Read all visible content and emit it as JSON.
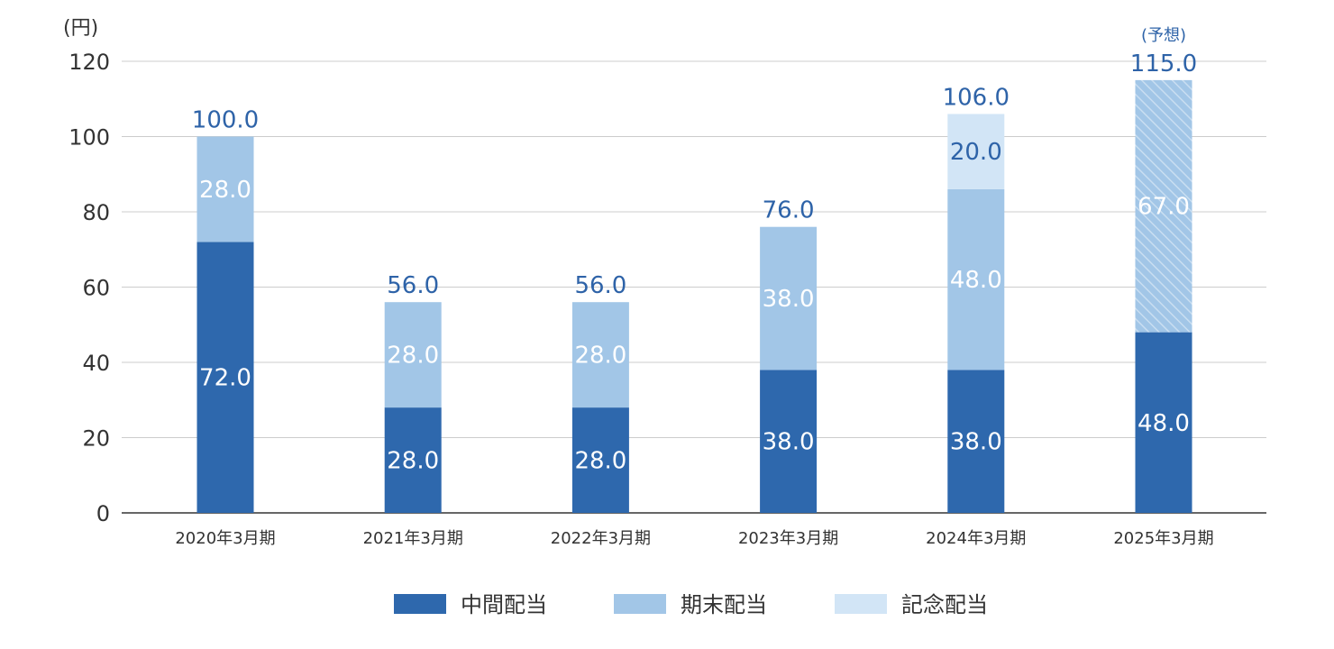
{
  "chart_data": {
    "type": "bar",
    "stacked": true,
    "unit_label": "(円)",
    "categories": [
      "2020年3月期",
      "2021年3月期",
      "2022年3月期",
      "2023年3月期",
      "2024年3月期",
      "2025年3月期"
    ],
    "series": [
      {
        "name": "中間配当",
        "values": [
          72.0,
          28.0,
          28.0,
          38.0,
          38.0,
          48.0
        ],
        "color": "#2e68ad",
        "labels": [
          "72.0",
          "28.0",
          "28.0",
          "38.0",
          "38.0",
          "48.0"
        ]
      },
      {
        "name": "期末配当",
        "values": [
          28.0,
          28.0,
          28.0,
          38.0,
          48.0,
          67.0
        ],
        "color": "#a2c6e7",
        "labels": [
          "28.0",
          "28.0",
          "28.0",
          "38.0",
          "48.0",
          "67.0"
        ]
      },
      {
        "name": "記念配当",
        "values": [
          0,
          0,
          0,
          0,
          20.0,
          0
        ],
        "color": "#d2e5f6",
        "labels": [
          "",
          "",
          "",
          "",
          "20.0",
          ""
        ]
      }
    ],
    "totals": [
      "100.0",
      "56.0",
      "56.0",
      "76.0",
      "106.0",
      "115.0"
    ],
    "forecast_note": "(予想)",
    "forecast_index": 5,
    "ylim": [
      0,
      120
    ],
    "yticks": [
      "0",
      "20",
      "40",
      "60",
      "80",
      "100",
      "120"
    ],
    "grid": true,
    "legend_position": "bottom"
  }
}
